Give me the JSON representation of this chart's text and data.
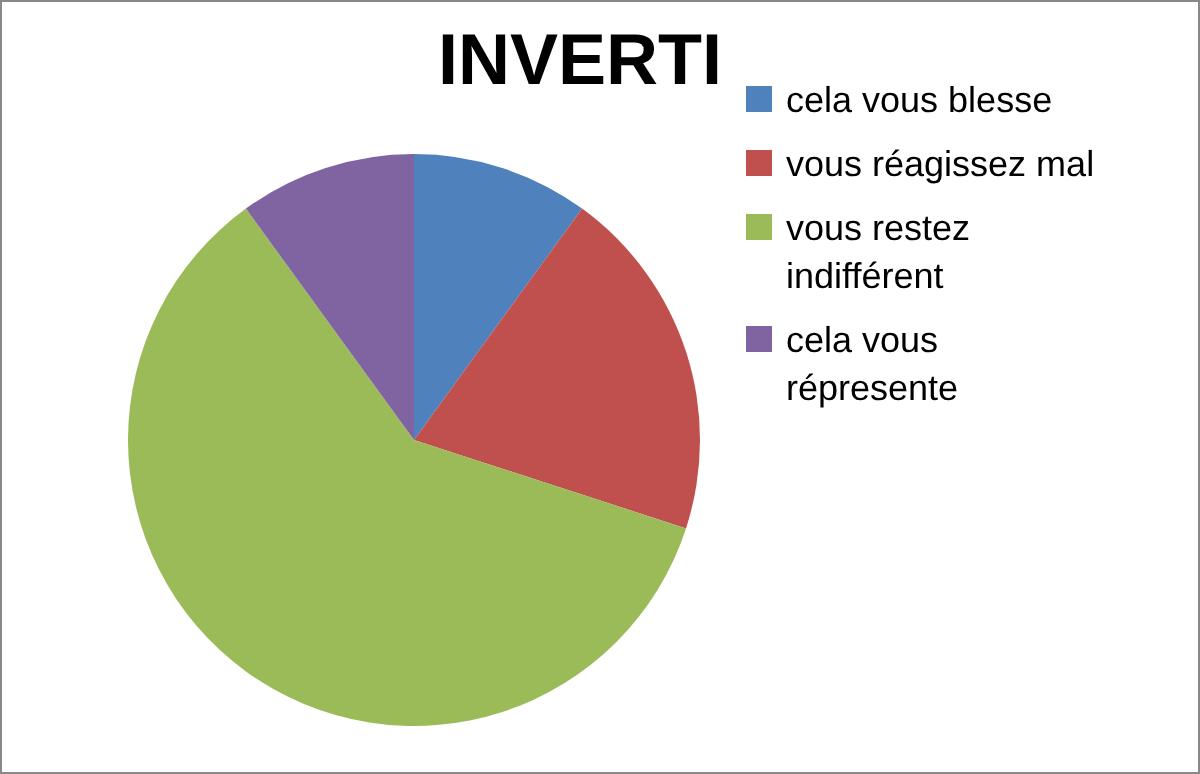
{
  "chart_data": {
    "type": "pie",
    "title": "INVERTI",
    "categories": [
      "cela vous blesse",
      "vous réagissez mal",
      "vous restez indifférent",
      "cela vous répresente"
    ],
    "values": [
      10,
      20,
      60,
      10
    ],
    "colors": [
      "#4f81bd",
      "#c0504d",
      "#9bbb59",
      "#8064a2"
    ],
    "legend": "right"
  }
}
